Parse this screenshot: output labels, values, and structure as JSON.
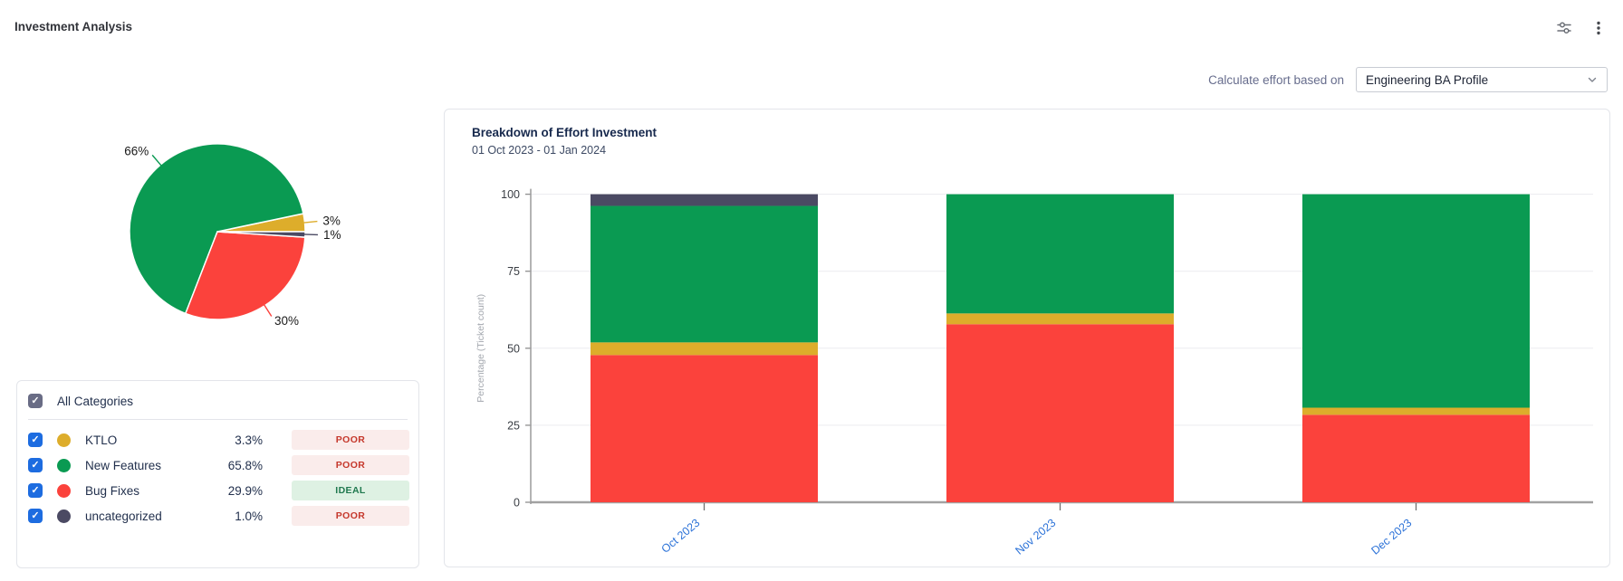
{
  "header": {
    "title": "Investment Analysis"
  },
  "toolbar": {
    "icons": [
      "sliders-filter-icon",
      "kebab-menu-icon"
    ]
  },
  "controls": {
    "label": "Calculate effort based on",
    "profile_select": {
      "value": "Engineering BA Profile",
      "icon": "chevron-down-icon"
    }
  },
  "categories_panel": {
    "all_label": "All Categories",
    "all_checked": true,
    "rows": [
      {
        "name": "KTLO",
        "color": "#ddad2b",
        "percent": "3.3%",
        "status": "POOR",
        "status_type": "poor",
        "checked": true
      },
      {
        "name": "New Features",
        "color": "#0a9a52",
        "percent": "65.8%",
        "status": "POOR",
        "status_type": "poor",
        "checked": true
      },
      {
        "name": "Bug Fixes",
        "color": "#fb423c",
        "percent": "29.9%",
        "status": "IDEAL",
        "status_type": "ideal",
        "checked": true
      },
      {
        "name": "uncategorized",
        "color": "#4b4a63",
        "percent": "1.0%",
        "status": "POOR",
        "status_type": "poor",
        "checked": true
      }
    ],
    "status_colors": {
      "poor": {
        "bg": "#faeceb",
        "text": "#c5372b"
      },
      "ideal": {
        "bg": "#def1e3",
        "text": "#20794f"
      }
    }
  },
  "chart_card": {
    "title": "Breakdown of Effort Investment",
    "subtitle": "01 Oct 2023 - 01 Jan 2024"
  },
  "chart_data": [
    {
      "type": "pie",
      "title": "Investment distribution",
      "direction": "counterclockwise",
      "start_angle_deg": 0,
      "slices": [
        {
          "name": "KTLO",
          "label": "3%",
          "value": 3.3,
          "color": "#ddad2b"
        },
        {
          "name": "New Features",
          "label": "66%",
          "value": 65.8,
          "color": "#0a9a52"
        },
        {
          "name": "Bug Fixes",
          "label": "30%",
          "value": 29.9,
          "color": "#fb423c"
        },
        {
          "name": "uncategorized",
          "label": "1%",
          "value": 1.0,
          "color": "#4b4a63"
        }
      ]
    },
    {
      "type": "bar",
      "stacked": true,
      "title": "Breakdown of Effort Investment",
      "subtitle": "01 Oct 2023 - 01 Jan 2024",
      "ylabel": "Percentage (Ticket count)",
      "ylim": [
        0,
        100
      ],
      "yticks": [
        0,
        25,
        50,
        75,
        100
      ],
      "categories": [
        "Oct 2023",
        "Nov 2023",
        "Dec 2023"
      ],
      "series": [
        {
          "name": "Bug Fixes",
          "color": "#fb423c",
          "values": [
            47.8,
            57.8,
            28.4
          ]
        },
        {
          "name": "KTLO",
          "color": "#ddad2b",
          "values": [
            4.1,
            3.5,
            2.3
          ]
        },
        {
          "name": "New Features",
          "color": "#0a9a52",
          "values": [
            44.3,
            38.7,
            69.3
          ]
        },
        {
          "name": "uncategorized",
          "color": "#4b4a63",
          "values": [
            3.8,
            0,
            0
          ]
        }
      ],
      "grid": true,
      "xtick_color": "#2d73d8",
      "ytick_color": "#3a3e44",
      "axis_color": "#a2a2a2"
    }
  ]
}
